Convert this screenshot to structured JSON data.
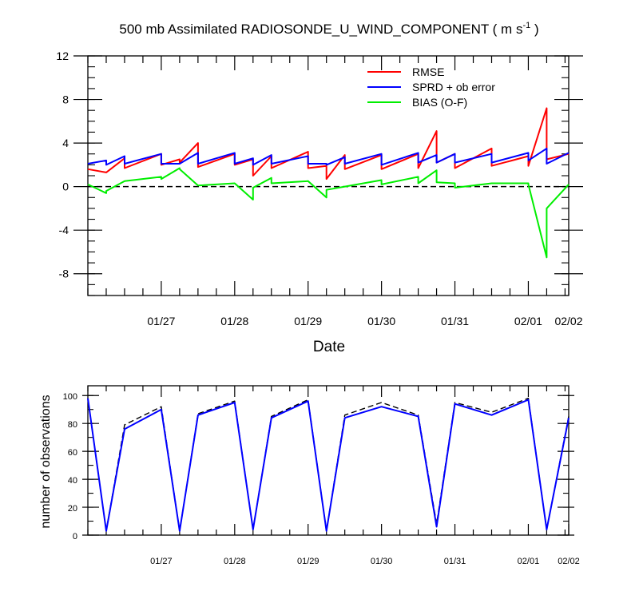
{
  "colors": {
    "rmse": "#ff0000",
    "sprd": "#0000ff",
    "bias": "#00ee00",
    "zero": "#000000",
    "obs_total": "#000000",
    "obs_used": "#0000ff"
  },
  "chart_data": [
    {
      "type": "line",
      "title_main": "500 mb Assimilated RADIOSONDE_U_WIND_COMPONENT ( m s",
      "title_sup": "-1",
      "title_end": " )",
      "xlabel": "Date",
      "ylabel": "",
      "xlim": [
        0,
        6.55
      ],
      "ylim": [
        -10,
        12
      ],
      "yticks": [
        -8,
        -4,
        0,
        4,
        8,
        12
      ],
      "ytick_labels": [
        "-8",
        "-4",
        "0",
        "4",
        "8",
        "12"
      ],
      "xticks": [
        1,
        2,
        3,
        4,
        5,
        6,
        6.55
      ],
      "xtick_labels": [
        "01/27",
        "01/28",
        "01/29",
        "01/30",
        "01/31",
        "02/01",
        "02/02"
      ],
      "reference_line": {
        "y": 0,
        "style": "dashed"
      },
      "legend": [
        "RMSE",
        "SPRD + ob error",
        "BIAS (O-F)"
      ],
      "series": [
        {
          "name": "RMSE",
          "color_key": "rmse",
          "points": [
            [
              0,
              1.6
            ],
            [
              0.25,
              1.3
            ],
            [
              0.5,
              2.6
            ],
            [
              0.5,
              1.7
            ],
            [
              1,
              3.0
            ],
            [
              1,
              2.0
            ],
            [
              1.25,
              2.5
            ],
            [
              1.25,
              2.2
            ],
            [
              1.5,
              4.0
            ],
            [
              1.5,
              1.8
            ],
            [
              2,
              3.0
            ],
            [
              2,
              2.0
            ],
            [
              2.25,
              2.5
            ],
            [
              2.25,
              1.0
            ],
            [
              2.5,
              2.8
            ],
            [
              2.5,
              1.7
            ],
            [
              3,
              3.2
            ],
            [
              3,
              1.7
            ],
            [
              3.25,
              1.9
            ],
            [
              3.25,
              0.7
            ],
            [
              3.5,
              2.9
            ],
            [
              3.5,
              1.6
            ],
            [
              4,
              2.9
            ],
            [
              4,
              1.6
            ],
            [
              4.5,
              3.0
            ],
            [
              4.5,
              1.7
            ],
            [
              4.75,
              5.1
            ],
            [
              4.75,
              2.2
            ],
            [
              5,
              3.0
            ],
            [
              5,
              1.7
            ],
            [
              5.5,
              3.5
            ],
            [
              5.5,
              1.9
            ],
            [
              6,
              2.8
            ],
            [
              6,
              1.9
            ],
            [
              6.25,
              7.2
            ],
            [
              6.25,
              2.5
            ],
            [
              6.55,
              3.0
            ]
          ]
        },
        {
          "name": "SPRD + ob error",
          "color_key": "sprd",
          "points": [
            [
              0,
              2.1
            ],
            [
              0.25,
              2.4
            ],
            [
              0.25,
              2.0
            ],
            [
              0.5,
              2.8
            ],
            [
              0.5,
              2.1
            ],
            [
              1,
              3.0
            ],
            [
              1,
              2.1
            ],
            [
              1.25,
              2.1
            ],
            [
              1.25,
              2.1
            ],
            [
              1.5,
              3.1
            ],
            [
              1.5,
              2.1
            ],
            [
              2,
              3.1
            ],
            [
              2,
              2.1
            ],
            [
              2.25,
              2.6
            ],
            [
              2.25,
              2.0
            ],
            [
              2.5,
              2.9
            ],
            [
              2.5,
              2.1
            ],
            [
              3,
              2.8
            ],
            [
              3,
              2.1
            ],
            [
              3.25,
              2.1
            ],
            [
              3.25,
              2.0
            ],
            [
              3.5,
              2.7
            ],
            [
              3.5,
              2.1
            ],
            [
              4,
              3.0
            ],
            [
              4,
              2.0
            ],
            [
              4.5,
              3.1
            ],
            [
              4.5,
              2.2
            ],
            [
              4.75,
              2.9
            ],
            [
              4.75,
              2.2
            ],
            [
              5,
              3.0
            ],
            [
              5,
              2.2
            ],
            [
              5.5,
              3.0
            ],
            [
              5.5,
              2.2
            ],
            [
              6,
              3.1
            ],
            [
              6,
              2.4
            ],
            [
              6.25,
              3.5
            ],
            [
              6.25,
              2.1
            ],
            [
              6.55,
              3.1
            ]
          ]
        },
        {
          "name": "BIAS (O-F)",
          "color_key": "bias",
          "points": [
            [
              0,
              0.2
            ],
            [
              0.25,
              -0.6
            ],
            [
              0.25,
              -0.4
            ],
            [
              0.5,
              0.5
            ],
            [
              1,
              0.9
            ],
            [
              1,
              0.7
            ],
            [
              1.25,
              1.7
            ],
            [
              1.25,
              1.6
            ],
            [
              1.5,
              0.1
            ],
            [
              2,
              0.3
            ],
            [
              2.25,
              -1.2
            ],
            [
              2.25,
              -0.1
            ],
            [
              2.5,
              0.8
            ],
            [
              2.5,
              0.3
            ],
            [
              3,
              0.5
            ],
            [
              3.25,
              -1.0
            ],
            [
              3.25,
              -0.3
            ],
            [
              3.5,
              0.0
            ],
            [
              4,
              0.6
            ],
            [
              4,
              0.2
            ],
            [
              4.5,
              0.9
            ],
            [
              4.5,
              0.3
            ],
            [
              4.75,
              1.5
            ],
            [
              4.75,
              0.4
            ],
            [
              5,
              0.3
            ],
            [
              5,
              -0.1
            ],
            [
              5.5,
              0.3
            ],
            [
              6,
              0.3
            ],
            [
              6,
              0.2
            ],
            [
              6.25,
              -6.5
            ],
            [
              6.25,
              -2.0
            ],
            [
              6.55,
              0.2
            ]
          ]
        }
      ]
    },
    {
      "type": "line",
      "ylabel": "number of observations",
      "xlim": [
        0,
        6.55
      ],
      "ylim": [
        0,
        107
      ],
      "yticks": [
        0,
        20,
        40,
        60,
        80,
        100
      ],
      "ytick_labels": [
        "0",
        "20",
        "40",
        "60",
        "80",
        "100"
      ],
      "xticks": [
        1,
        2,
        3,
        4,
        5,
        6,
        6.55
      ],
      "xtick_labels": [
        "01/27",
        "01/28",
        "01/29",
        "01/30",
        "01/31",
        "02/01",
        "02/02"
      ],
      "series": [
        {
          "name": "observations total",
          "color_key": "obs_total",
          "style": "dashed",
          "points": [
            [
              0,
              98
            ],
            [
              0.25,
              3
            ],
            [
              0.5,
              79
            ],
            [
              1,
              92
            ],
            [
              1.25,
              3
            ],
            [
              1.5,
              87
            ],
            [
              2,
              96
            ],
            [
              2.25,
              4
            ],
            [
              2.5,
              85
            ],
            [
              3,
              97
            ],
            [
              3.25,
              3
            ],
            [
              3.5,
              86
            ],
            [
              4,
              95
            ],
            [
              4.5,
              86
            ],
            [
              4.75,
              8
            ],
            [
              5,
              95
            ],
            [
              5.5,
              88
            ],
            [
              6,
              98
            ],
            [
              6.25,
              4
            ],
            [
              6.55,
              85
            ]
          ]
        },
        {
          "name": "observations used",
          "color_key": "obs_used",
          "style": "solid",
          "points": [
            [
              0,
              98
            ],
            [
              0.25,
              3
            ],
            [
              0.5,
              76
            ],
            [
              1,
              90
            ],
            [
              1.25,
              3
            ],
            [
              1.5,
              86
            ],
            [
              2,
              95
            ],
            [
              2.25,
              4
            ],
            [
              2.5,
              84
            ],
            [
              3,
              96
            ],
            [
              3.25,
              3
            ],
            [
              3.5,
              84
            ],
            [
              4,
              92
            ],
            [
              4.5,
              85
            ],
            [
              4.75,
              6
            ],
            [
              5,
              94
            ],
            [
              5.5,
              86
            ],
            [
              6,
              97
            ],
            [
              6.25,
              4
            ],
            [
              6.55,
              84
            ]
          ]
        }
      ]
    }
  ]
}
